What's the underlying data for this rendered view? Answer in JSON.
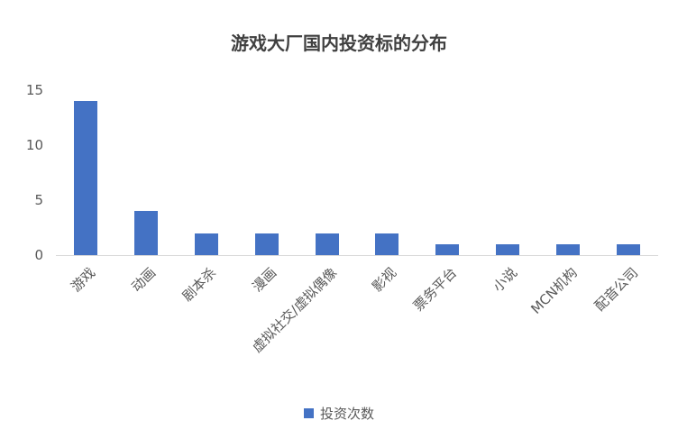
{
  "title": "游戏大厂国内投资标的分布",
  "legend": {
    "label": "投资次数",
    "marker_color": "#4472C4"
  },
  "colors": {
    "bar": "#4472C4",
    "axis_line": "#d9d9d9",
    "tick_text": "#595959",
    "title_text": "#404040"
  },
  "chart_data": {
    "type": "bar",
    "title": "游戏大厂国内投资标的分布",
    "categories": [
      "游戏",
      "动画",
      "剧本杀",
      "漫画",
      "虚拟社交/虚拟偶像",
      "影视",
      "票务平台",
      "小说",
      "MCN机构",
      "配音公司"
    ],
    "values": [
      14,
      4,
      2,
      2,
      2,
      2,
      1,
      1,
      1,
      1
    ],
    "series_name": "投资次数",
    "xlabel": "",
    "ylabel": "",
    "ylim": [
      0,
      15
    ],
    "y_ticks": [
      0,
      5,
      10,
      15
    ],
    "grid": false,
    "legend_position": "bottom"
  }
}
